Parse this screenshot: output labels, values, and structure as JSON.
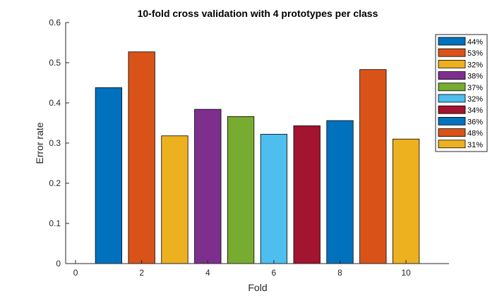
{
  "chart_data": {
    "type": "bar",
    "title": "10-fold cross validation with 4 prototypes per class",
    "xlabel": "Fold",
    "ylabel": "Error rate",
    "xlim": [
      -0.3,
      11.3
    ],
    "ylim": [
      0,
      0.6
    ],
    "xticks": [
      0,
      2,
      4,
      6,
      8,
      10
    ],
    "yticks": [
      0,
      0.1,
      0.2,
      0.3,
      0.4,
      0.5,
      0.6
    ],
    "x": [
      1,
      2,
      3,
      4,
      5,
      6,
      7,
      8,
      9,
      10
    ],
    "series": [
      {
        "name": "44%",
        "x": 1,
        "value": 0.438,
        "color": "#0072BD"
      },
      {
        "name": "53%",
        "x": 2,
        "value": 0.527,
        "color": "#D95319"
      },
      {
        "name": "32%",
        "x": 3,
        "value": 0.318,
        "color": "#EDB120"
      },
      {
        "name": "38%",
        "x": 4,
        "value": 0.384,
        "color": "#7E2F8E"
      },
      {
        "name": "37%",
        "x": 5,
        "value": 0.366,
        "color": "#77AC30"
      },
      {
        "name": "32%",
        "x": 6,
        "value": 0.322,
        "color": "#4DBEEE"
      },
      {
        "name": "34%",
        "x": 7,
        "value": 0.343,
        "color": "#A2142F"
      },
      {
        "name": "36%",
        "x": 8,
        "value": 0.356,
        "color": "#0072BD"
      },
      {
        "name": "48%",
        "x": 9,
        "value": 0.483,
        "color": "#D95319"
      },
      {
        "name": "31%",
        "x": 10,
        "value": 0.31,
        "color": "#EDB120"
      }
    ],
    "legend_position": "top-right",
    "grid": false
  }
}
